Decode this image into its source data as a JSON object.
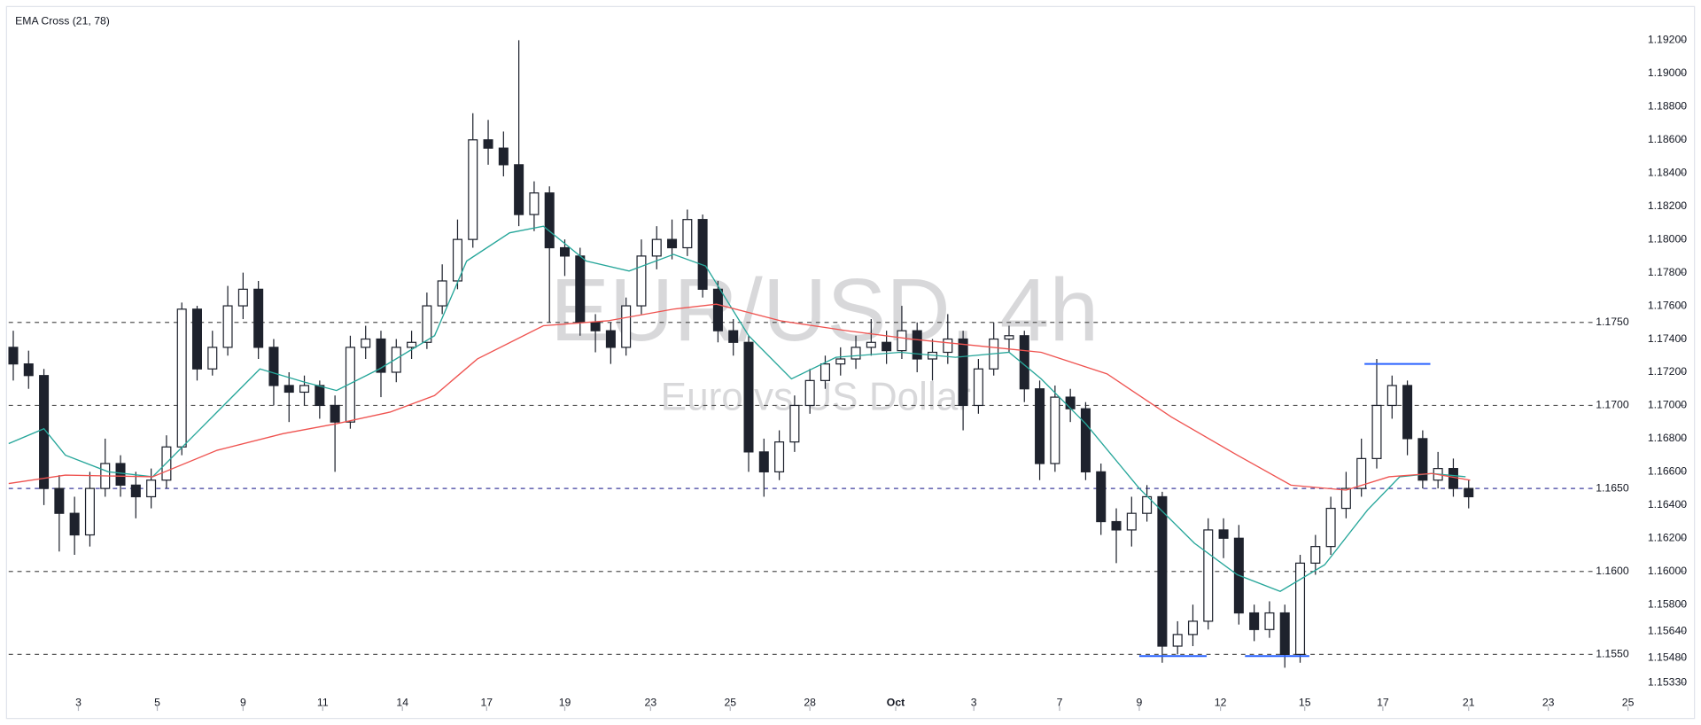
{
  "chart_data": {
    "type": "candlestick",
    "indicator_label": "EMA Cross (21, 78)",
    "symbol_watermark": "EUR/USD, 4h",
    "subtitle_watermark": "Euro vs US Dollar",
    "up_color": "#ffffff",
    "down_color": "#1e222d",
    "wick_color": "#1e222d",
    "xlim": [
      -0.3,
      109.6
    ],
    "ylim": [
      1.1516,
      1.1939
    ],
    "open": [
      1.1735,
      1.1725,
      1.1718,
      1.165,
      1.1635,
      1.1622,
      1.165,
      1.1665,
      1.1652,
      1.1645,
      1.1655,
      1.1675,
      1.1758,
      1.1722,
      1.1735,
      1.176,
      1.177,
      1.1735,
      1.1712,
      1.1708,
      1.1712,
      1.17,
      1.169,
      1.1735,
      1.174,
      1.172,
      1.1735,
      1.1738,
      1.176,
      1.1775,
      1.18,
      1.186,
      1.1855,
      1.1845,
      1.1815,
      1.1828,
      1.1795,
      1.179,
      1.175,
      1.1745,
      1.1735,
      1.176,
      1.179,
      1.18,
      1.1795,
      1.1812,
      1.177,
      1.1745,
      1.1738,
      1.1672,
      1.166,
      1.1678,
      1.17,
      1.1715,
      1.1725,
      1.1728,
      1.1735,
      1.1738,
      1.1733,
      1.1745,
      1.1728,
      1.1732,
      1.174,
      1.17,
      1.1722,
      1.174,
      1.1742,
      1.171,
      1.1665,
      1.1705,
      1.1698,
      1.166,
      1.163,
      1.1625,
      1.1635,
      1.1645,
      1.1555,
      1.1562,
      1.157,
      1.1625,
      1.162,
      1.1575,
      1.1565,
      1.1575,
      1.155,
      1.1605,
      1.1615,
      1.1638,
      1.165,
      1.1668,
      1.17,
      1.1712,
      1.168,
      1.1655,
      1.1662,
      1.165
    ],
    "high": [
      1.1745,
      1.1733,
      1.1722,
      1.1658,
      1.1645,
      1.166,
      1.168,
      1.167,
      1.166,
      1.1662,
      1.1682,
      1.1762,
      1.176,
      1.1745,
      1.1772,
      1.178,
      1.1775,
      1.174,
      1.172,
      1.1718,
      1.1715,
      1.1706,
      1.1742,
      1.1748,
      1.1745,
      1.174,
      1.1745,
      1.1768,
      1.1785,
      1.1812,
      1.1876,
      1.1872,
      1.1865,
      1.192,
      1.1835,
      1.1832,
      1.18,
      1.1795,
      1.1755,
      1.175,
      1.1765,
      1.18,
      1.1808,
      1.1812,
      1.1818,
      1.1815,
      1.1775,
      1.1752,
      1.1742,
      1.168,
      1.1685,
      1.1706,
      1.1722,
      1.173,
      1.1735,
      1.1742,
      1.1752,
      1.1745,
      1.176,
      1.175,
      1.174,
      1.1755,
      1.1745,
      1.1728,
      1.175,
      1.1748,
      1.1745,
      1.1715,
      1.1712,
      1.171,
      1.1702,
      1.1665,
      1.1638,
      1.1645,
      1.1652,
      1.1648,
      1.157,
      1.158,
      1.1632,
      1.1632,
      1.1628,
      1.158,
      1.1582,
      1.158,
      1.161,
      1.1622,
      1.1645,
      1.166,
      1.168,
      1.1728,
      1.1718,
      1.1715,
      1.1685,
      1.1672,
      1.1668,
      1.1655
    ],
    "low": [
      1.1715,
      1.171,
      1.164,
      1.1612,
      1.161,
      1.1615,
      1.1645,
      1.1645,
      1.1632,
      1.1638,
      1.165,
      1.167,
      1.1715,
      1.1718,
      1.173,
      1.1752,
      1.1728,
      1.17,
      1.169,
      1.17,
      1.1692,
      1.166,
      1.1686,
      1.1728,
      1.1705,
      1.1714,
      1.1728,
      1.1734,
      1.1755,
      1.177,
      1.1795,
      1.1845,
      1.1838,
      1.1808,
      1.1805,
      1.175,
      1.1778,
      1.1742,
      1.1732,
      1.1725,
      1.173,
      1.1755,
      1.1782,
      1.1788,
      1.179,
      1.1765,
      1.1738,
      1.173,
      1.166,
      1.1645,
      1.1655,
      1.1672,
      1.1695,
      1.171,
      1.1718,
      1.1722,
      1.173,
      1.1725,
      1.1728,
      1.172,
      1.1715,
      1.1725,
      1.1685,
      1.1695,
      1.1718,
      1.1732,
      1.1702,
      1.1655,
      1.166,
      1.169,
      1.1655,
      1.1622,
      1.1605,
      1.1615,
      1.163,
      1.1545,
      1.155,
      1.1555,
      1.1565,
      1.1608,
      1.1568,
      1.1558,
      1.156,
      1.1542,
      1.1545,
      1.1598,
      1.161,
      1.1632,
      1.1645,
      1.1662,
      1.1692,
      1.167,
      1.165,
      1.165,
      1.1645,
      1.1638
    ],
    "close": [
      1.1725,
      1.1718,
      1.165,
      1.1635,
      1.1622,
      1.165,
      1.1665,
      1.1652,
      1.1645,
      1.1655,
      1.1675,
      1.1758,
      1.1722,
      1.1735,
      1.176,
      1.177,
      1.1735,
      1.1712,
      1.1708,
      1.1712,
      1.17,
      1.169,
      1.1735,
      1.174,
      1.172,
      1.1735,
      1.1738,
      1.176,
      1.1775,
      1.18,
      1.186,
      1.1855,
      1.1845,
      1.1815,
      1.1828,
      1.1795,
      1.179,
      1.175,
      1.1745,
      1.1735,
      1.176,
      1.179,
      1.18,
      1.1795,
      1.1812,
      1.177,
      1.1745,
      1.1738,
      1.1672,
      1.166,
      1.1678,
      1.17,
      1.1715,
      1.1725,
      1.1728,
      1.1735,
      1.1738,
      1.1733,
      1.1745,
      1.1728,
      1.1732,
      1.174,
      1.17,
      1.1722,
      1.174,
      1.1742,
      1.171,
      1.1665,
      1.1705,
      1.1698,
      1.166,
      1.163,
      1.1625,
      1.1635,
      1.1645,
      1.1555,
      1.1562,
      1.157,
      1.1625,
      1.162,
      1.1575,
      1.1565,
      1.1575,
      1.155,
      1.1605,
      1.1615,
      1.1638,
      1.165,
      1.1668,
      1.17,
      1.1712,
      1.168,
      1.1655,
      1.1662,
      1.165,
      1.1645
    ],
    "lines": [
      {
        "color": "#26a69a",
        "x": [
          -0.3,
          2.0,
          3.4,
          6.2,
          9.1,
          11.9,
          16.1,
          19.0,
          21.1,
          23.9,
          27.5,
          29.6,
          32.4,
          34.6,
          37.4,
          40.2,
          43.1,
          45.2,
          48.0,
          50.8,
          53.7,
          57.9,
          61.5,
          65.0,
          67.1,
          70.0,
          73.5,
          77.1,
          79.9,
          82.7,
          85.6,
          88.4,
          90.5,
          92.6,
          94.8
        ],
        "values": [
          1.1677,
          1.1686,
          1.167,
          1.166,
          1.1657,
          1.1683,
          1.1722,
          1.1714,
          1.1709,
          1.1722,
          1.1742,
          1.1787,
          1.1804,
          1.1808,
          1.1787,
          1.1781,
          1.1791,
          1.1784,
          1.1742,
          1.1716,
          1.1729,
          1.1732,
          1.1729,
          1.1732,
          1.1716,
          1.1689,
          1.165,
          1.1617,
          1.1598,
          1.1588,
          1.1604,
          1.1637,
          1.1657,
          1.1659,
          1.1657
        ]
      },
      {
        "color": "#ef5350",
        "x": [
          -0.3,
          3.4,
          9.1,
          13.3,
          17.6,
          21.1,
          24.6,
          27.5,
          30.3,
          34.6,
          38.8,
          43.1,
          45.9,
          50.1,
          54.4,
          58.6,
          62.9,
          67.1,
          71.4,
          75.6,
          79.9,
          83.4,
          87.0,
          89.8,
          92.6,
          95.1
        ],
        "values": [
          1.1653,
          1.1658,
          1.1657,
          1.1673,
          1.1683,
          1.1689,
          1.1696,
          1.1706,
          1.1728,
          1.1748,
          1.1751,
          1.1758,
          1.1761,
          1.1751,
          1.1745,
          1.174,
          1.1736,
          1.1732,
          1.1719,
          1.1693,
          1.167,
          1.1652,
          1.1649,
          1.1657,
          1.1659,
          1.1655
        ]
      }
    ],
    "levels": [
      {
        "value": 1.175,
        "label": "1.1750"
      },
      {
        "value": 1.17,
        "label": "1.1700"
      },
      {
        "value": 1.165,
        "label": "1.1650"
      },
      {
        "value": 1.16,
        "label": "1.1600"
      },
      {
        "value": 1.155,
        "label": "1.1550"
      }
    ],
    "level_colors": [
      "#555555",
      "#555555",
      "#3d3d9e",
      "#555555",
      "#555555"
    ],
    "drawings": [
      {
        "x": [
          88.2,
          92.5
        ],
        "y": 1.1725,
        "color": "#2962ff"
      },
      {
        "x": [
          73.5,
          77.9
        ],
        "y": 1.1549,
        "color": "#2962ff"
      },
      {
        "x": [
          80.4,
          84.6
        ],
        "y": 1.1549,
        "color": "#2962ff"
      }
    ],
    "yticks": [
      {
        "value": 1.192,
        "label": "1.19200"
      },
      {
        "value": 1.19,
        "label": "1.19000"
      },
      {
        "value": 1.188,
        "label": "1.18800"
      },
      {
        "value": 1.186,
        "label": "1.18600"
      },
      {
        "value": 1.184,
        "label": "1.18400"
      },
      {
        "value": 1.182,
        "label": "1.18200"
      },
      {
        "value": 1.18,
        "label": "1.18000"
      },
      {
        "value": 1.178,
        "label": "1.17800"
      },
      {
        "value": 1.176,
        "label": "1.17600"
      },
      {
        "value": 1.174,
        "label": "1.17400"
      },
      {
        "value": 1.172,
        "label": "1.17200"
      },
      {
        "value": 1.17,
        "label": "1.17000"
      },
      {
        "value": 1.168,
        "label": "1.16800"
      },
      {
        "value": 1.166,
        "label": "1.16600"
      },
      {
        "value": 1.164,
        "label": "1.16400"
      },
      {
        "value": 1.162,
        "label": "1.16200"
      },
      {
        "value": 1.16,
        "label": "1.16000"
      },
      {
        "value": 1.158,
        "label": "1.15800"
      },
      {
        "value": 1.1564,
        "label": "1.15640"
      },
      {
        "value": 1.1548,
        "label": "1.15480"
      },
      {
        "value": 1.1533,
        "label": "1.15330"
      }
    ],
    "xticks": [
      {
        "value": 4.25,
        "label": "3"
      },
      {
        "value": 9.4,
        "label": "5"
      },
      {
        "value": 15.0,
        "label": "9"
      },
      {
        "value": 20.2,
        "label": "11"
      },
      {
        "value": 25.4,
        "label": "14"
      },
      {
        "value": 30.9,
        "label": "17"
      },
      {
        "value": 36.0,
        "label": "19"
      },
      {
        "value": 41.6,
        "label": "23"
      },
      {
        "value": 46.8,
        "label": "25"
      },
      {
        "value": 52.0,
        "label": "28"
      },
      {
        "value": 57.6,
        "label": "Oct"
      },
      {
        "value": 62.7,
        "label": "3"
      },
      {
        "value": 68.3,
        "label": "7"
      },
      {
        "value": 73.5,
        "label": "9"
      },
      {
        "value": 78.8,
        "label": "12"
      },
      {
        "value": 84.3,
        "label": "15"
      },
      {
        "value": 89.4,
        "label": "17"
      },
      {
        "value": 95.0,
        "label": "21"
      },
      {
        "value": 100.2,
        "label": "23"
      },
      {
        "value": 105.4,
        "label": "25"
      }
    ]
  }
}
